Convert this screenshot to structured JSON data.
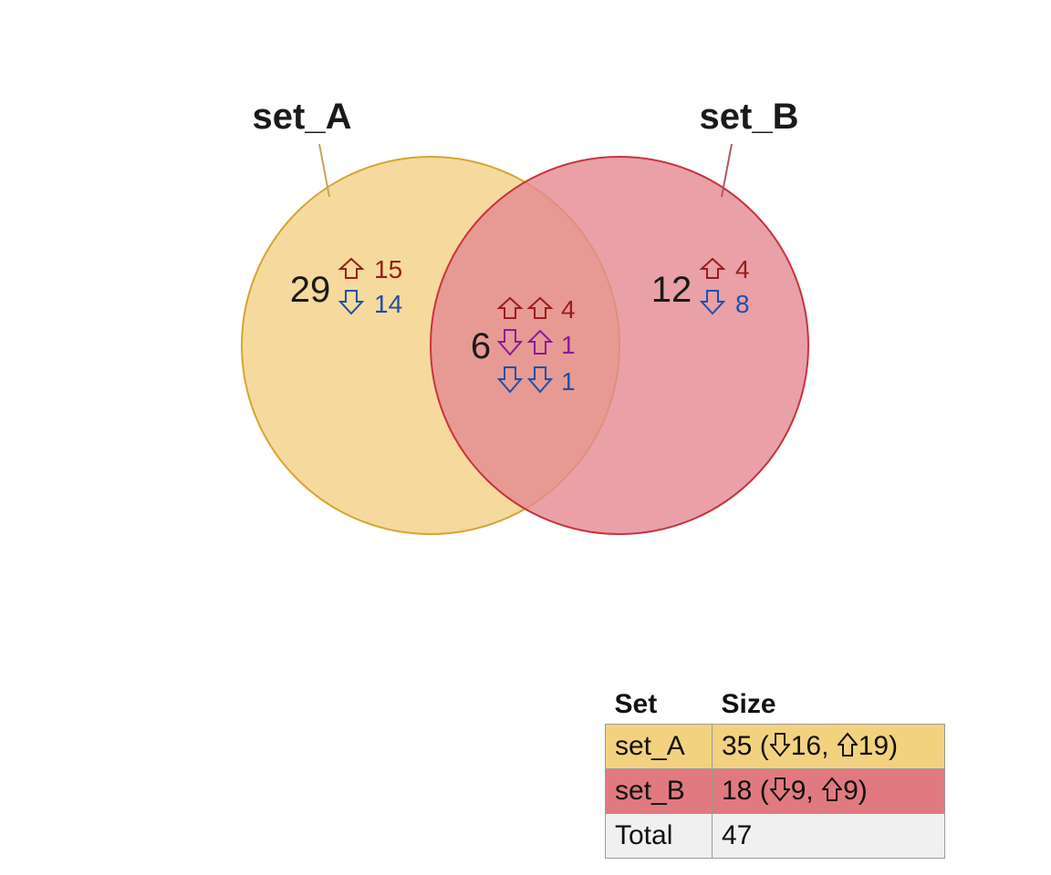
{
  "sets": {
    "a": {
      "label": "set_A",
      "color": "#f3c862"
    },
    "b": {
      "label": "set_B",
      "color": "#e07a80"
    }
  },
  "regions": {
    "a_only": {
      "total": "29",
      "up": "15",
      "down": "14"
    },
    "b_only": {
      "total": "12",
      "up": "4",
      "down": "8"
    },
    "both": {
      "total": "6",
      "up_up": "4",
      "down_up": "1",
      "down_down": "1"
    }
  },
  "arrow_colors": {
    "up": "#9b1c1c",
    "down": "#1f4fa8",
    "mixed": "#8b1a9b"
  },
  "table": {
    "headers": {
      "set": "Set",
      "size": "Size"
    },
    "rows": [
      {
        "set": "set_A",
        "total": "35",
        "down": "16",
        "up": "19",
        "color": "#f3d27f"
      },
      {
        "set": "set_B",
        "total": "18",
        "down": "9",
        "up": "9",
        "color": "#e07a80"
      },
      {
        "set": "Total",
        "total": "47",
        "color": "#f0f0f0"
      }
    ]
  }
}
